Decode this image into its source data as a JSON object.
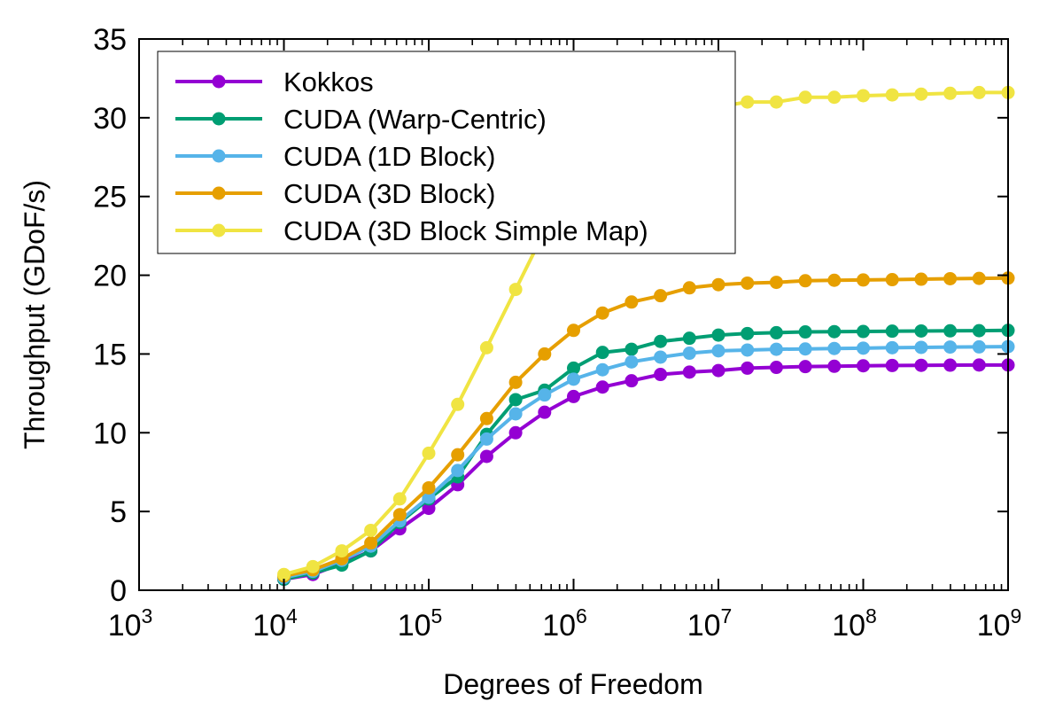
{
  "chart_data": {
    "type": "line",
    "title": "",
    "xlabel": "Degrees of Freedom",
    "ylabel": "Throughput (GDoF/s)",
    "xscale": "log",
    "xlim": [
      1000,
      1000000000
    ],
    "ylim": [
      0,
      35
    ],
    "yticks": [
      0,
      5,
      10,
      15,
      20,
      25,
      30,
      35
    ],
    "xticks": [
      {
        "base": "10",
        "exp": "3",
        "value": 1000
      },
      {
        "base": "10",
        "exp": "4",
        "value": 10000
      },
      {
        "base": "10",
        "exp": "5",
        "value": 100000
      },
      {
        "base": "10",
        "exp": "6",
        "value": 1000000
      },
      {
        "base": "10",
        "exp": "7",
        "value": 10000000
      },
      {
        "base": "10",
        "exp": "8",
        "value": 100000000
      },
      {
        "base": "10",
        "exp": "9",
        "value": 1000000000
      }
    ],
    "grid": false,
    "legend_position": "top-left",
    "x": [
      10000,
      15849,
      25119,
      39811,
      63096,
      100000,
      158489,
      251189,
      398107,
      630957,
      1000000,
      1584893,
      2511886,
      3981072,
      6309573,
      10000000,
      15848932,
      25118864,
      39810717,
      63095734,
      100000000,
      158489319,
      251188643,
      398107171,
      630957344,
      1000000000
    ],
    "series": [
      {
        "name": "Kokkos",
        "color": "#9400d3",
        "values": [
          0.7,
          1.0,
          1.7,
          2.5,
          3.9,
          5.2,
          6.7,
          8.5,
          10.0,
          11.3,
          12.3,
          12.9,
          13.3,
          13.7,
          13.85,
          13.95,
          14.1,
          14.15,
          14.2,
          14.22,
          14.25,
          14.27,
          14.28,
          14.29,
          14.3,
          14.3
        ]
      },
      {
        "name": "CUDA (Warp-Centric)",
        "color": "#009e73",
        "values": [
          0.7,
          1.1,
          1.6,
          2.5,
          4.3,
          5.8,
          7.2,
          9.9,
          12.1,
          12.7,
          14.1,
          15.1,
          15.3,
          15.8,
          16.0,
          16.2,
          16.3,
          16.35,
          16.4,
          16.42,
          16.43,
          16.45,
          16.46,
          16.47,
          16.48,
          16.5
        ]
      },
      {
        "name": "CUDA (1D Block)",
        "color": "#56b4e9",
        "values": [
          0.8,
          1.2,
          1.9,
          2.8,
          4.4,
          5.9,
          7.6,
          9.6,
          11.2,
          12.4,
          13.4,
          14.0,
          14.5,
          14.8,
          15.05,
          15.2,
          15.25,
          15.3,
          15.32,
          15.35,
          15.37,
          15.4,
          15.42,
          15.44,
          15.45,
          15.47
        ]
      },
      {
        "name": "CUDA (3D Block)",
        "color": "#e69f00",
        "values": [
          0.9,
          1.3,
          2.0,
          3.0,
          4.8,
          6.5,
          8.6,
          10.9,
          13.2,
          15.0,
          16.5,
          17.6,
          18.3,
          18.7,
          19.2,
          19.4,
          19.5,
          19.55,
          19.65,
          19.68,
          19.7,
          19.72,
          19.75,
          19.78,
          19.8,
          19.82
        ]
      },
      {
        "name": "CUDA (3D Block Simple Map)",
        "color": "#f0e442",
        "values": [
          1.0,
          1.5,
          2.5,
          3.8,
          5.8,
          8.7,
          11.8,
          15.4,
          19.1,
          22.8,
          25.6,
          28.1,
          28.9,
          29.2,
          30.2,
          30.7,
          31.0,
          31.0,
          31.3,
          31.3,
          31.4,
          31.45,
          31.5,
          31.55,
          31.6,
          31.6
        ]
      }
    ]
  }
}
